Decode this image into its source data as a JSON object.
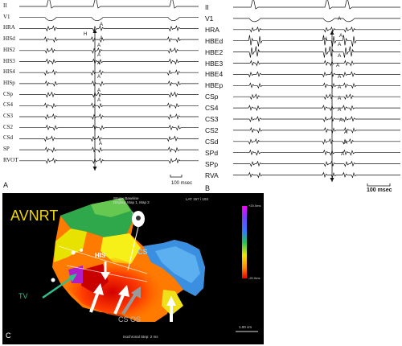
{
  "panel_a": {
    "letter": "A",
    "channels": [
      "II",
      "V1",
      "HRA",
      "HISd",
      "HIS2",
      "HIS3",
      "HIS4",
      "HISp",
      "CSp",
      "CS4",
      "CS3",
      "CS2",
      "CSd",
      "SP",
      "RVOT"
    ],
    "markers": {
      "h": "H",
      "a": "A"
    },
    "scale": "100 msec"
  },
  "panel_b": {
    "letter": "B",
    "channels": [
      "II",
      "V1",
      "HRA",
      "HBEd",
      "HBE2",
      "HBE3",
      "HBE4",
      "HBEp",
      "CSp",
      "CS4",
      "CS3",
      "CS2",
      "CSd",
      "SPd",
      "SPp",
      "RVA"
    ],
    "markers": {
      "h": "H",
      "a": "A"
    },
    "scale": "100 msec"
  },
  "panel_c": {
    "letter": "C",
    "title": "AVNRT",
    "header_line1": "Stage: Baseline",
    "header_line2": "Display: Map 1, Map 2",
    "header_right": "LAT 157 / 103",
    "scale_top": "+20.0ms",
    "scale_bottom": "-20.0ms",
    "labels": {
      "his": "HIS",
      "cs": "CS",
      "tv": "TV",
      "cs_os": "CS OS",
      "tv_small": "TV"
    },
    "footer_left": "Isochronal Step: 2 ms",
    "footer_right": "1.00 cm",
    "colors": {
      "title": "#f1d500",
      "cs": "#8fd0f5",
      "tv": "#2fbf8e",
      "background": "#000000"
    }
  }
}
